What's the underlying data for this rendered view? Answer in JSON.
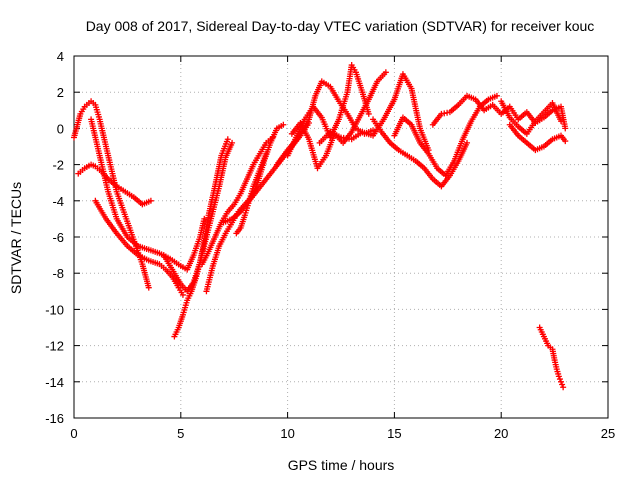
{
  "chart_data": {
    "type": "scatter",
    "title": "Day 008 of 2017, Sidereal Day-to-day VTEC variation (SDTVAR) for receiver kouc",
    "xlabel": "GPS time / hours",
    "ylabel": "SDTVAR / TECUs",
    "xlim": [
      0,
      25
    ],
    "ylim": [
      -16,
      4
    ],
    "xticks": [
      0,
      5,
      10,
      15,
      20,
      25
    ],
    "yticks": [
      -16,
      -14,
      -12,
      -10,
      -8,
      -6,
      -4,
      -2,
      0,
      2,
      4
    ],
    "grid": true,
    "legend": "none",
    "marker": "plus",
    "color": "#ff0000",
    "series": [
      {
        "x": [
          0.0,
          0.3,
          0.5,
          0.8,
          1.0,
          1.2,
          1.5,
          1.8,
          2.0,
          2.3,
          2.6,
          2.9,
          3.2,
          3.5
        ],
        "y": [
          -0.5,
          0.8,
          1.2,
          1.5,
          1.3,
          0.5,
          -1.0,
          -2.5,
          -3.5,
          -4.5,
          -5.5,
          -6.5,
          -7.5,
          -8.8
        ]
      },
      {
        "x": [
          0.2,
          0.5,
          0.8,
          1.0,
          1.3,
          1.6,
          2.0,
          2.4,
          2.8,
          3.2,
          3.6
        ],
        "y": [
          -2.5,
          -2.2,
          -2.0,
          -2.1,
          -2.4,
          -2.8,
          -3.2,
          -3.5,
          -3.8,
          -4.2,
          -4.0
        ]
      },
      {
        "x": [
          0.8,
          1.0,
          1.3,
          1.6,
          2.0,
          2.5,
          3.0,
          3.5,
          4.0,
          4.5,
          5.0,
          5.3,
          5.6,
          5.9,
          6.1
        ],
        "y": [
          0.5,
          -0.5,
          -2.0,
          -3.5,
          -5.0,
          -6.0,
          -6.5,
          -6.7,
          -6.9,
          -7.2,
          -7.6,
          -7.8,
          -7.0,
          -6.0,
          -5.0
        ]
      },
      {
        "x": [
          1.0,
          1.5,
          2.0,
          2.5,
          3.0,
          3.5,
          4.0,
          4.3,
          4.6,
          4.9,
          5.1
        ],
        "y": [
          -4.0,
          -5.0,
          -5.8,
          -6.5,
          -7.0,
          -7.3,
          -7.5,
          -7.8,
          -8.2,
          -8.8,
          -9.2
        ]
      },
      {
        "x": [
          4.7,
          4.9,
          5.1,
          5.3,
          5.5,
          5.7,
          5.9,
          6.1,
          6.3,
          6.6,
          6.9,
          7.2
        ],
        "y": [
          -11.5,
          -11.0,
          -10.3,
          -9.5,
          -9.0,
          -8.3,
          -7.4,
          -6.2,
          -4.8,
          -3.2,
          -1.5,
          -0.6
        ]
      },
      {
        "x": [
          4.2,
          4.6,
          5.0,
          5.3,
          5.6,
          5.9,
          6.2,
          6.5,
          6.8,
          7.1,
          7.4
        ],
        "y": [
          -7.0,
          -7.8,
          -8.6,
          -9.0,
          -8.5,
          -7.4,
          -6.0,
          -4.6,
          -3.2,
          -1.6,
          -0.8
        ]
      },
      {
        "x": [
          6.2,
          6.5,
          6.8,
          7.1,
          7.4,
          7.7,
          8.0,
          8.3,
          8.6,
          8.9,
          9.2,
          9.5,
          9.8
        ],
        "y": [
          -9.0,
          -7.6,
          -6.5,
          -5.8,
          -5.2,
          -4.6,
          -4.2,
          -3.8,
          -3.0,
          -1.8,
          -0.8,
          0.0,
          0.2
        ]
      },
      {
        "x": [
          6.0,
          6.3,
          6.6,
          6.9,
          7.2,
          7.5,
          7.8,
          8.1,
          8.4,
          8.7,
          9.0,
          9.3
        ],
        "y": [
          -7.5,
          -6.8,
          -6.0,
          -5.2,
          -4.6,
          -4.2,
          -3.6,
          -2.8,
          -2.0,
          -1.4,
          -0.8,
          -0.5
        ]
      },
      {
        "x": [
          7.0,
          7.4,
          7.8,
          8.2,
          8.6,
          9.0,
          9.4,
          9.8,
          10.2,
          10.6,
          11.0
        ],
        "y": [
          -5.2,
          -5.0,
          -4.6,
          -4.0,
          -3.4,
          -2.8,
          -2.2,
          -1.6,
          -1.0,
          -0.4,
          0.3
        ]
      },
      {
        "x": [
          7.6,
          7.8,
          8.0,
          8.2,
          8.4,
          8.6,
          8.8,
          9.0
        ],
        "y": [
          -5.8,
          -5.5,
          -4.8,
          -4.0,
          -3.2,
          -2.6,
          -2.0,
          -1.4
        ]
      },
      {
        "x": [
          9.5,
          10.0,
          10.5,
          11.0,
          11.3,
          11.6,
          12.0,
          12.4,
          12.8,
          13.2,
          13.6,
          14.0
        ],
        "y": [
          -2.0,
          -1.2,
          -0.5,
          0.5,
          1.8,
          2.6,
          2.3,
          1.5,
          0.8,
          0.0,
          -0.3,
          -0.1
        ]
      },
      {
        "x": [
          10.0,
          10.4,
          10.8,
          11.2,
          11.6,
          12.0,
          12.4,
          12.8,
          13.0,
          13.2,
          13.5,
          13.8
        ],
        "y": [
          -1.5,
          -0.5,
          0.5,
          1.2,
          0.6,
          -0.5,
          0.5,
          2.0,
          3.5,
          3.1,
          2.0,
          0.8
        ]
      },
      {
        "x": [
          10.2,
          10.6,
          11.0,
          11.4,
          11.8,
          12.2,
          12.6,
          13.0,
          13.4,
          13.8,
          14.2,
          14.6
        ],
        "y": [
          -0.3,
          0.3,
          -0.6,
          -2.2,
          -1.5,
          -0.3,
          -0.8,
          -0.2,
          0.7,
          1.6,
          2.6,
          3.1
        ]
      },
      {
        "x": [
          11.5,
          12.0,
          12.5,
          13.0,
          13.5,
          14.0,
          14.5,
          15.0,
          15.4,
          15.8,
          16.2,
          16.6
        ],
        "y": [
          -0.8,
          -0.2,
          -0.5,
          -0.6,
          -0.2,
          -0.4,
          0.5,
          1.6,
          3.0,
          2.2,
          0.0,
          -1.2
        ]
      },
      {
        "x": [
          14.0,
          14.4,
          14.8,
          15.2,
          15.6,
          16.0,
          16.4,
          16.8,
          17.2,
          17.6,
          18.0,
          18.4
        ],
        "y": [
          0.5,
          -0.2,
          -0.8,
          -1.2,
          -1.5,
          -1.8,
          -2.2,
          -2.8,
          -3.2,
          -2.6,
          -1.8,
          -0.8
        ]
      },
      {
        "x": [
          15.0,
          15.4,
          15.8,
          16.2,
          16.6,
          17.0,
          17.4,
          17.8,
          18.2,
          18.6,
          19.0,
          19.4,
          19.8
        ],
        "y": [
          -0.4,
          0.6,
          0.2,
          -0.8,
          -1.4,
          -2.2,
          -2.6,
          -1.8,
          -0.6,
          0.4,
          1.2,
          1.6,
          1.8
        ]
      },
      {
        "x": [
          16.8,
          17.2,
          17.6,
          18.0,
          18.4,
          18.8,
          19.2,
          19.6,
          20.0,
          20.4,
          20.8,
          21.2,
          21.6,
          22.0,
          22.4,
          22.8,
          23.0
        ],
        "y": [
          0.2,
          0.8,
          0.9,
          1.3,
          1.8,
          1.6,
          1.0,
          1.3,
          0.8,
          1.2,
          0.5,
          0.9,
          0.3,
          0.6,
          1.0,
          1.2,
          0.0
        ]
      },
      {
        "x": [
          20.4,
          20.8,
          21.2,
          21.6,
          22.0,
          22.4,
          22.8,
          23.0
        ],
        "y": [
          0.2,
          -0.4,
          -0.8,
          -1.2,
          -1.0,
          -0.6,
          -0.4,
          -0.7
        ]
      },
      {
        "x": [
          20.0,
          20.4,
          20.8,
          21.2,
          21.6,
          22.0,
          22.4,
          22.8
        ],
        "y": [
          1.5,
          0.6,
          0.1,
          -0.3,
          0.4,
          0.9,
          1.4,
          0.4
        ]
      },
      {
        "x": [
          21.8,
          22.0,
          22.2,
          22.4,
          22.5,
          22.6,
          22.7,
          22.8,
          22.9
        ],
        "y": [
          -11.0,
          -11.5,
          -12.0,
          -12.2,
          -12.8,
          -13.3,
          -13.7,
          -14.0,
          -14.3
        ]
      }
    ]
  }
}
